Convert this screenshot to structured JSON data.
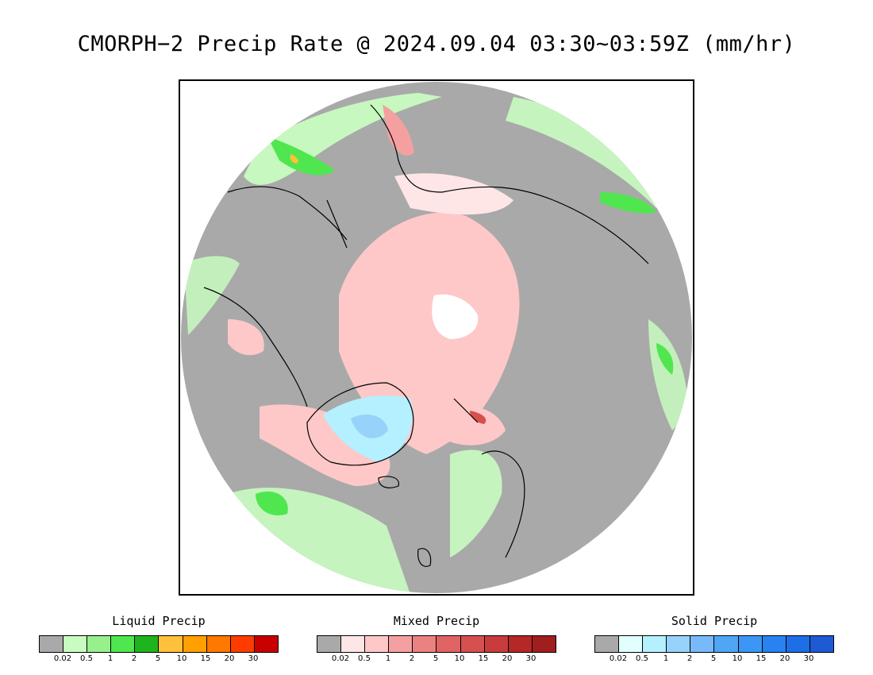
{
  "header": {
    "title": "CMORPH−2 Precip Rate @ 2024.09.04 03:30~03:59Z (mm/hr)"
  },
  "map": {
    "projection": "north-polar-stereographic",
    "background_color": "#a9a9a9",
    "coastline_color": "#000000"
  },
  "legends": [
    {
      "title": "Liquid Precip",
      "colors": [
        "#a9a9a9",
        "#c8fcc0",
        "#96f08c",
        "#50e650",
        "#1eb41e",
        "#ffc03c",
        "#ffa000",
        "#ff7800",
        "#ff3c00",
        "#c80000"
      ],
      "ticks": [
        "0.02",
        "0.5",
        "1",
        "2",
        "5",
        "10",
        "15",
        "20",
        "30"
      ]
    },
    {
      "title": "Mixed Precip",
      "colors": [
        "#a9a9a9",
        "#ffe6e6",
        "#ffc8c8",
        "#f5a0a0",
        "#eb8282",
        "#e16464",
        "#d75050",
        "#c83c3c",
        "#b42828",
        "#a01e1e"
      ],
      "ticks": [
        "0.02",
        "0.5",
        "1",
        "2",
        "5",
        "10",
        "15",
        "20",
        "30"
      ]
    },
    {
      "title": "Solid Precip",
      "colors": [
        "#a9a9a9",
        "#e1ffff",
        "#b4f0ff",
        "#96d2fa",
        "#78b9fa",
        "#50a5f5",
        "#3c96f5",
        "#2882f0",
        "#1e6ee6",
        "#1e5ad2"
      ],
      "ticks": [
        "0.02",
        "0.5",
        "1",
        "2",
        "5",
        "10",
        "15",
        "20",
        "30"
      ]
    }
  ]
}
